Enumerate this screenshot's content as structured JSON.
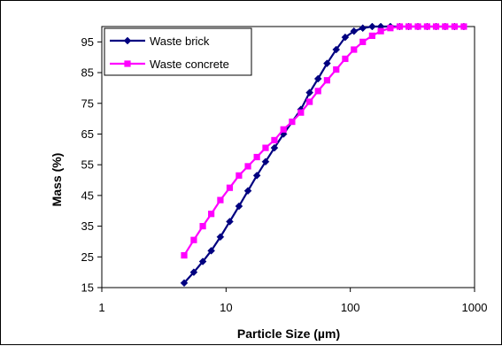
{
  "chart_data": {
    "type": "line",
    "xlabel": "Particle Size (µm)",
    "ylabel": "Mass (%)",
    "x_scale": "log",
    "xlim": [
      1,
      1000
    ],
    "ylim": [
      15,
      100
    ],
    "x_ticks": [
      1,
      10,
      100,
      1000
    ],
    "x_tick_labels": [
      "1",
      "10",
      "100",
      "1000"
    ],
    "y_ticks": [
      15,
      25,
      35,
      45,
      55,
      65,
      75,
      85,
      95
    ],
    "y_tick_labels": [
      "15",
      "25",
      "35",
      "45",
      "55",
      "65",
      "75",
      "85",
      "95"
    ],
    "grid": false,
    "legend_position": "top-left",
    "series": [
      {
        "name": "Waste brick",
        "color": "#000080",
        "marker": "diamond",
        "points": [
          [
            4.6,
            16.5
          ],
          [
            5.5,
            20.0
          ],
          [
            6.5,
            23.5
          ],
          [
            7.6,
            27.0
          ],
          [
            9.0,
            31.5
          ],
          [
            10.7,
            36.5
          ],
          [
            12.7,
            41.5
          ],
          [
            15.0,
            46.5
          ],
          [
            17.7,
            51.5
          ],
          [
            20.8,
            56.0
          ],
          [
            24.5,
            60.5
          ],
          [
            29.0,
            65.0
          ],
          [
            40.0,
            73.0
          ],
          [
            47.0,
            78.5
          ],
          [
            55.0,
            83.0
          ],
          [
            65.0,
            88.0
          ],
          [
            77.0,
            92.5
          ],
          [
            91.0,
            96.5
          ],
          [
            107.0,
            98.5
          ],
          [
            126.0,
            99.5
          ],
          [
            150.0,
            100.0
          ],
          [
            176.0,
            100.0
          ],
          [
            210.0,
            100.0
          ],
          [
            250.0,
            100.0
          ],
          [
            295.0,
            100.0
          ],
          [
            350.0,
            100.0
          ],
          [
            415.0,
            100.0
          ],
          [
            490.0,
            100.0
          ],
          [
            580.0,
            100.0
          ],
          [
            690.0,
            100.0
          ],
          [
            820.0,
            100.0
          ]
        ]
      },
      {
        "name": "Waste concrete",
        "color": "#FF00FF",
        "marker": "square",
        "points": [
          [
            4.6,
            25.5
          ],
          [
            5.5,
            30.5
          ],
          [
            6.5,
            35.0
          ],
          [
            7.6,
            39.0
          ],
          [
            9.0,
            43.5
          ],
          [
            10.7,
            47.5
          ],
          [
            12.7,
            51.5
          ],
          [
            15.0,
            54.5
          ],
          [
            17.7,
            57.5
          ],
          [
            20.8,
            60.5
          ],
          [
            24.5,
            63.0
          ],
          [
            29.0,
            66.5
          ],
          [
            34.0,
            69.0
          ],
          [
            40.0,
            72.0
          ],
          [
            47.0,
            75.5
          ],
          [
            55.0,
            79.0
          ],
          [
            65.0,
            82.5
          ],
          [
            77.0,
            86.0
          ],
          [
            91.0,
            89.5
          ],
          [
            107.0,
            92.5
          ],
          [
            126.0,
            95.0
          ],
          [
            150.0,
            97.0
          ],
          [
            176.0,
            98.5
          ],
          [
            210.0,
            99.5
          ],
          [
            250.0,
            100.0
          ],
          [
            295.0,
            100.0
          ],
          [
            350.0,
            100.0
          ],
          [
            415.0,
            100.0
          ],
          [
            490.0,
            100.0
          ],
          [
            580.0,
            100.0
          ],
          [
            690.0,
            100.0
          ],
          [
            820.0,
            100.0
          ]
        ]
      }
    ]
  }
}
